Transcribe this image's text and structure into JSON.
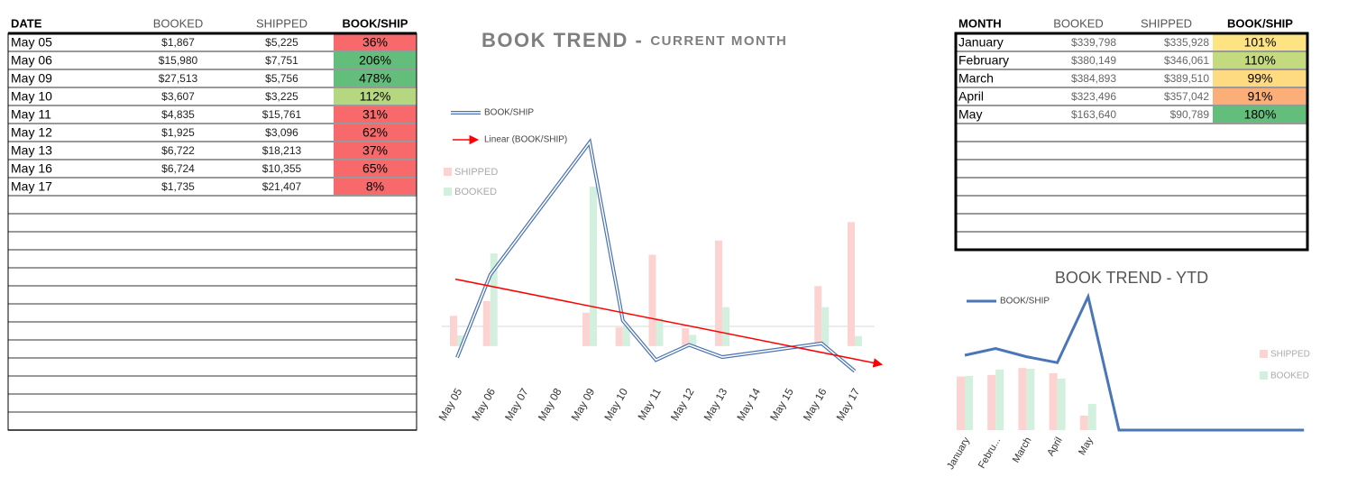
{
  "daily_table": {
    "columns": [
      "DATE",
      "BOOKED",
      "SHIPPED",
      "BOOK/SHIP"
    ],
    "rows": [
      [
        "May 05",
        "$1,867",
        "$5,225",
        "36%"
      ],
      [
        "May 06",
        "$15,980",
        "$7,751",
        "206%"
      ],
      [
        "May 09",
        "$27,513",
        "$5,756",
        "478%"
      ],
      [
        "May 10",
        "$3,607",
        "$3,225",
        "112%"
      ],
      [
        "May 11",
        "$4,835",
        "$15,761",
        "31%"
      ],
      [
        "May 12",
        "$1,925",
        "$3,096",
        "62%"
      ],
      [
        "May 13",
        "$6,722",
        "$18,213",
        "37%"
      ],
      [
        "May 16",
        "$6,724",
        "$10,355",
        "65%"
      ],
      [
        "May 17",
        "$1,735",
        "$21,407",
        "8%"
      ]
    ],
    "ratio_colors": [
      "#f8696b",
      "#63be7b",
      "#63be7b",
      "#b4d77f",
      "#f8696b",
      "#f8696b",
      "#f8696b",
      "#f8696b",
      "#f8696b"
    ]
  },
  "monthly_table": {
    "columns": [
      "MONTH",
      "BOOKED",
      "SHIPPED",
      "BOOK/SHIP"
    ],
    "rows": [
      [
        "January",
        "$339,798",
        "$335,928",
        "101%"
      ],
      [
        "February",
        "$380,149",
        "$346,061",
        "110%"
      ],
      [
        "March",
        "$384,893",
        "$389,510",
        "99%"
      ],
      [
        "April",
        "$323,496",
        "$357,042",
        "91%"
      ],
      [
        "May",
        "$163,640",
        "$90,789",
        "180%"
      ]
    ],
    "ratio_colors": [
      "#fee383",
      "#c4da7f",
      "#fedb81",
      "#fbae78",
      "#63be7b"
    ]
  },
  "chart_data": [
    {
      "type": "bar",
      "title": "BOOK TREND -",
      "subtitle": "CURRENT MONTH",
      "categories": [
        "May 05",
        "May 06",
        "May 07",
        "May 08",
        "May 09",
        "May 10",
        "May 11",
        "May 12",
        "May 13",
        "May 14",
        "May 15",
        "May 16",
        "May 17"
      ],
      "series": [
        {
          "name": "SHIPPED",
          "color": "#fcd3d1",
          "values": [
            5225,
            7751,
            null,
            null,
            5756,
            3225,
            15761,
            3096,
            18213,
            null,
            null,
            10355,
            21407
          ]
        },
        {
          "name": "BOOKED",
          "color": "#d2f0dd",
          "values": [
            1867,
            15980,
            null,
            null,
            27513,
            3607,
            4835,
            1925,
            6722,
            null,
            null,
            6724,
            1735
          ]
        },
        {
          "name": "BOOK/SHIP",
          "type": "line",
          "style": "double",
          "color": "#4a72b0",
          "axis": "y2",
          "values": [
            36,
            206,
            null,
            null,
            478,
            112,
            31,
            62,
            37,
            null,
            null,
            65,
            8
          ],
          "trendline": {
            "name": "Linear (BOOK/SHIP)",
            "color": "#ff0000"
          }
        }
      ],
      "ylim": [
        -5000,
        37000
      ],
      "y2lim": [
        0,
        500
      ],
      "connect_gaps": true
    },
    {
      "type": "bar",
      "title": "BOOK TREND - YTD",
      "categories": [
        "January",
        "Febru...",
        "March",
        "April",
        "May",
        null,
        null,
        null,
        null,
        null,
        null,
        null
      ],
      "series": [
        {
          "name": "SHIPPED",
          "color": "#fcd3d1",
          "values": [
            335928,
            346061,
            389510,
            357042,
            90789,
            null,
            null,
            null,
            null,
            null,
            null,
            null
          ]
        },
        {
          "name": "BOOKED",
          "color": "#d2f0dd",
          "values": [
            339798,
            380149,
            384893,
            323496,
            163640,
            null,
            null,
            null,
            null,
            null,
            null,
            null
          ]
        },
        {
          "name": "BOOK/SHIP",
          "type": "line",
          "style": "solid",
          "color": "#4a76b8",
          "axis": "y2",
          "values": [
            101,
            110,
            99,
            91,
            180,
            0,
            0,
            0,
            0,
            0,
            0,
            0
          ]
        }
      ],
      "ylim": [
        0,
        930000
      ],
      "y2lim": [
        0,
        200
      ],
      "connect_gaps": true
    }
  ]
}
